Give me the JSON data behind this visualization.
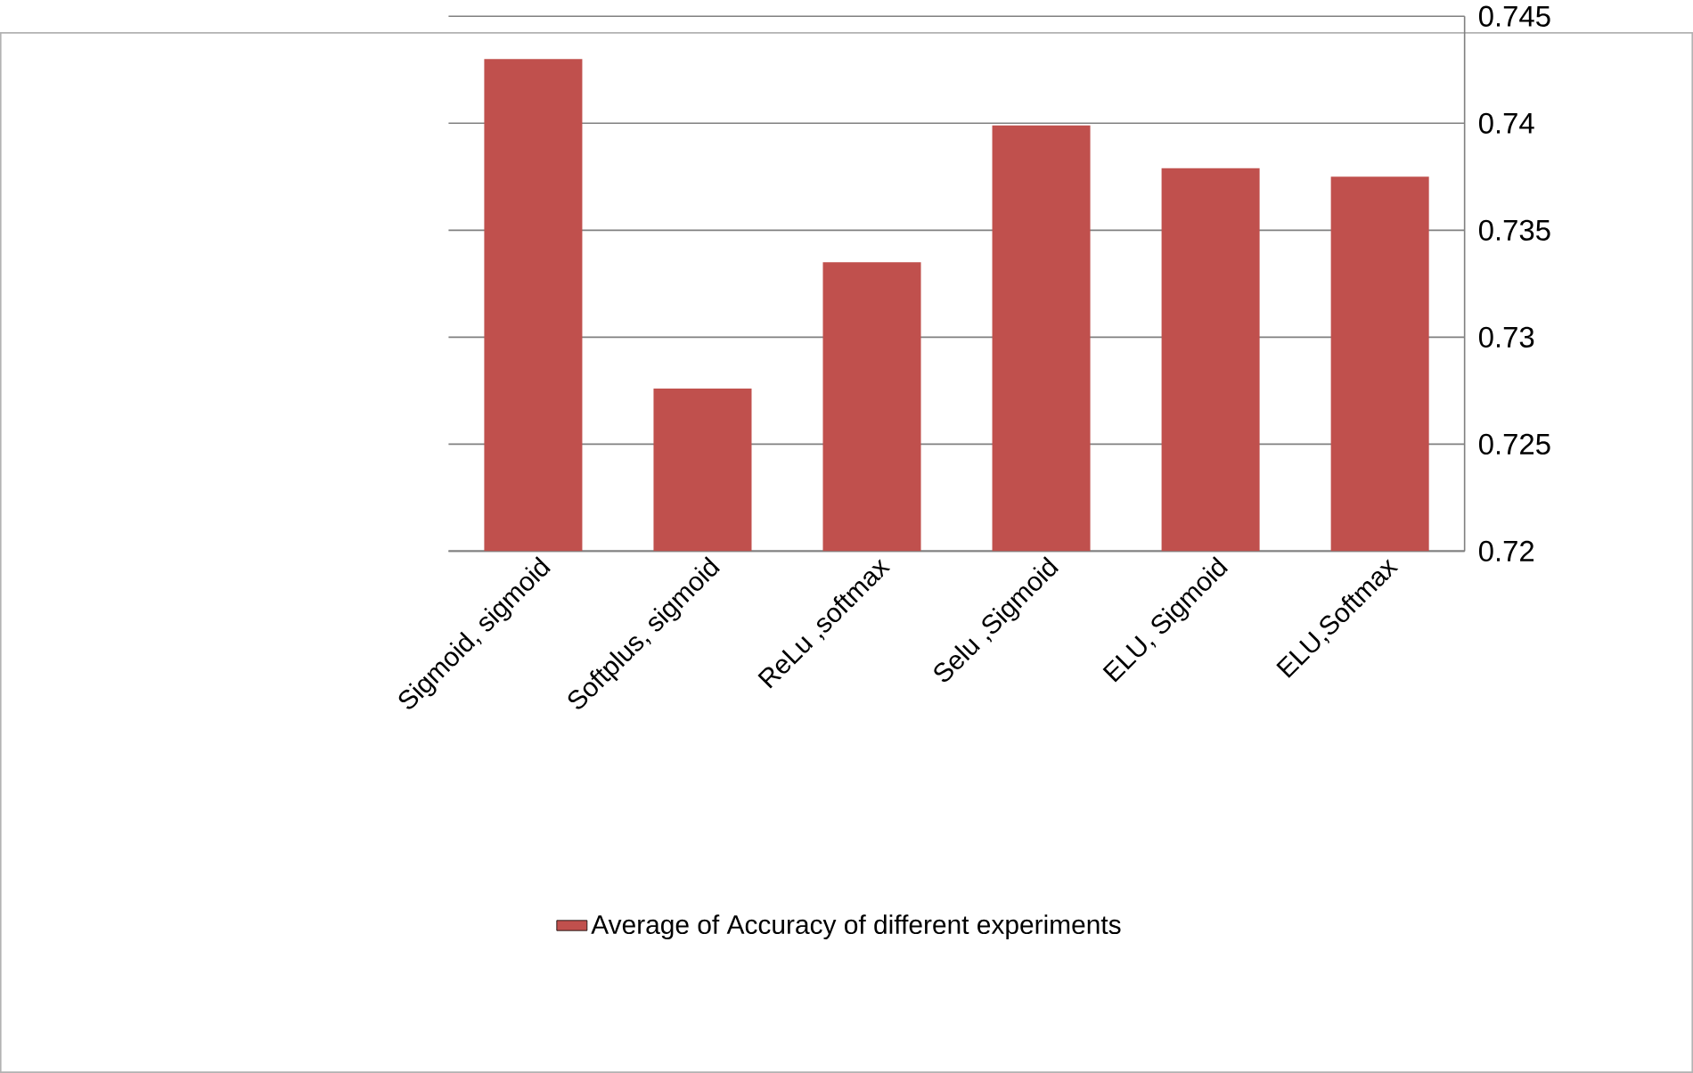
{
  "chart_data": {
    "type": "bar",
    "categories": [
      "Sigmoid, sigmoid",
      "Softplus, sigmoid",
      "ReLu ,softmax",
      "Selu ,Sigmoid",
      "ELU, Sigmoid",
      "ELU,Softmax"
    ],
    "series": [
      {
        "name": "Average of Accuracy of different experiments",
        "color": "#c0504d",
        "values": [
          0.743,
          0.7276,
          0.7335,
          0.7399,
          0.7379,
          0.7375
        ]
      }
    ],
    "ylim": [
      0.72,
      0.745
    ],
    "yticks": [
      0.72,
      0.725,
      0.73,
      0.735,
      0.74,
      0.745
    ],
    "grid": "y",
    "legend": "bottom"
  }
}
